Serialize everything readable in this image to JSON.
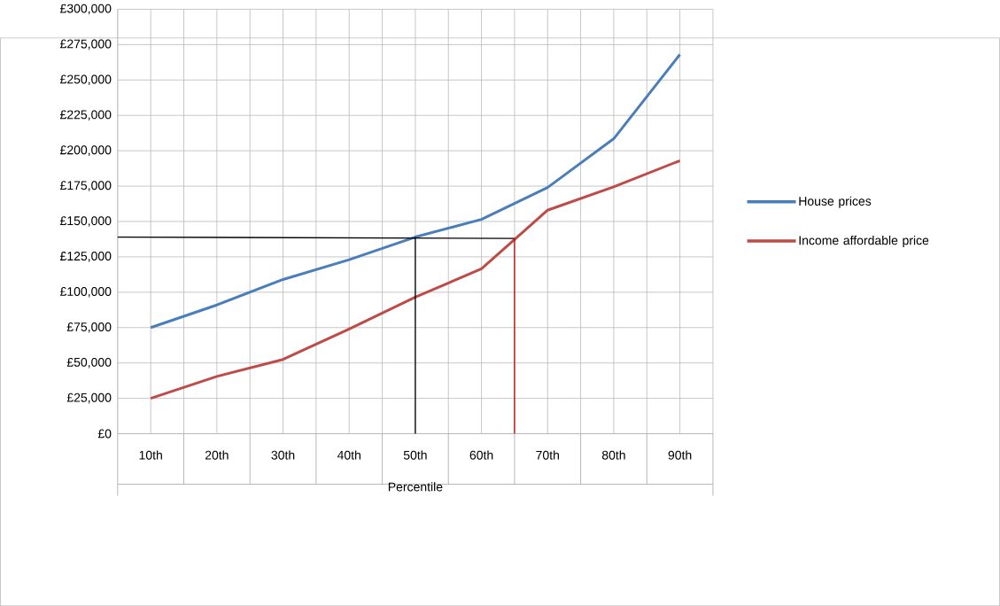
{
  "chart_data": {
    "type": "line",
    "xlabel": "Percentile",
    "x": [
      10,
      20,
      30,
      40,
      50,
      60,
      70,
      80,
      90
    ],
    "xlim": [
      5,
      95
    ],
    "xticks": [
      {
        "value": 10,
        "label": "10th"
      },
      {
        "value": 20,
        "label": "20th"
      },
      {
        "value": 30,
        "label": "30th"
      },
      {
        "value": 40,
        "label": "40th"
      },
      {
        "value": 50,
        "label": "50th"
      },
      {
        "value": 60,
        "label": "60th"
      },
      {
        "value": 70,
        "label": "70th"
      },
      {
        "value": 80,
        "label": "80th"
      },
      {
        "value": 90,
        "label": "90th"
      }
    ],
    "ylim": [
      0,
      300000
    ],
    "yticks": [
      {
        "value": 0,
        "label": "£0"
      },
      {
        "value": 25000,
        "label": "£25,000"
      },
      {
        "value": 50000,
        "label": "£50,000"
      },
      {
        "value": 75000,
        "label": "£75,000"
      },
      {
        "value": 100000,
        "label": "£100,000"
      },
      {
        "value": 125000,
        "label": "£125,000"
      },
      {
        "value": 150000,
        "label": "£150,000"
      },
      {
        "value": 175000,
        "label": "£175,000"
      },
      {
        "value": 200000,
        "label": "£200,000"
      },
      {
        "value": 225000,
        "label": "£225,000"
      },
      {
        "value": 250000,
        "label": "£250,000"
      },
      {
        "value": 275000,
        "label": "£275,000"
      },
      {
        "value": 300000,
        "label": "£300,000"
      }
    ],
    "series": [
      {
        "name": "House prices",
        "color": "#4a7ebb",
        "values": [
          75000,
          91000,
          109000,
          123000,
          139000,
          151500,
          174000,
          208500,
          268000
        ]
      },
      {
        "name": "Income affordable price",
        "color": "#be4b48",
        "values": [
          25000,
          40500,
          52500,
          74000,
          96500,
          116500,
          158000,
          174500,
          193000
        ]
      },
      {
        "color": "#000000",
        "x": [
          5,
          65
        ],
        "values": [
          139000,
          138000
        ]
      },
      {
        "color": "#000000",
        "x": [
          50,
          50
        ],
        "values": [
          0,
          139000
        ]
      },
      {
        "color": "#c00000",
        "x": [
          65,
          65
        ],
        "values": [
          0,
          138000
        ]
      }
    ],
    "grid": true,
    "legend": "right",
    "line_style": "solid",
    "marker": "none"
  }
}
